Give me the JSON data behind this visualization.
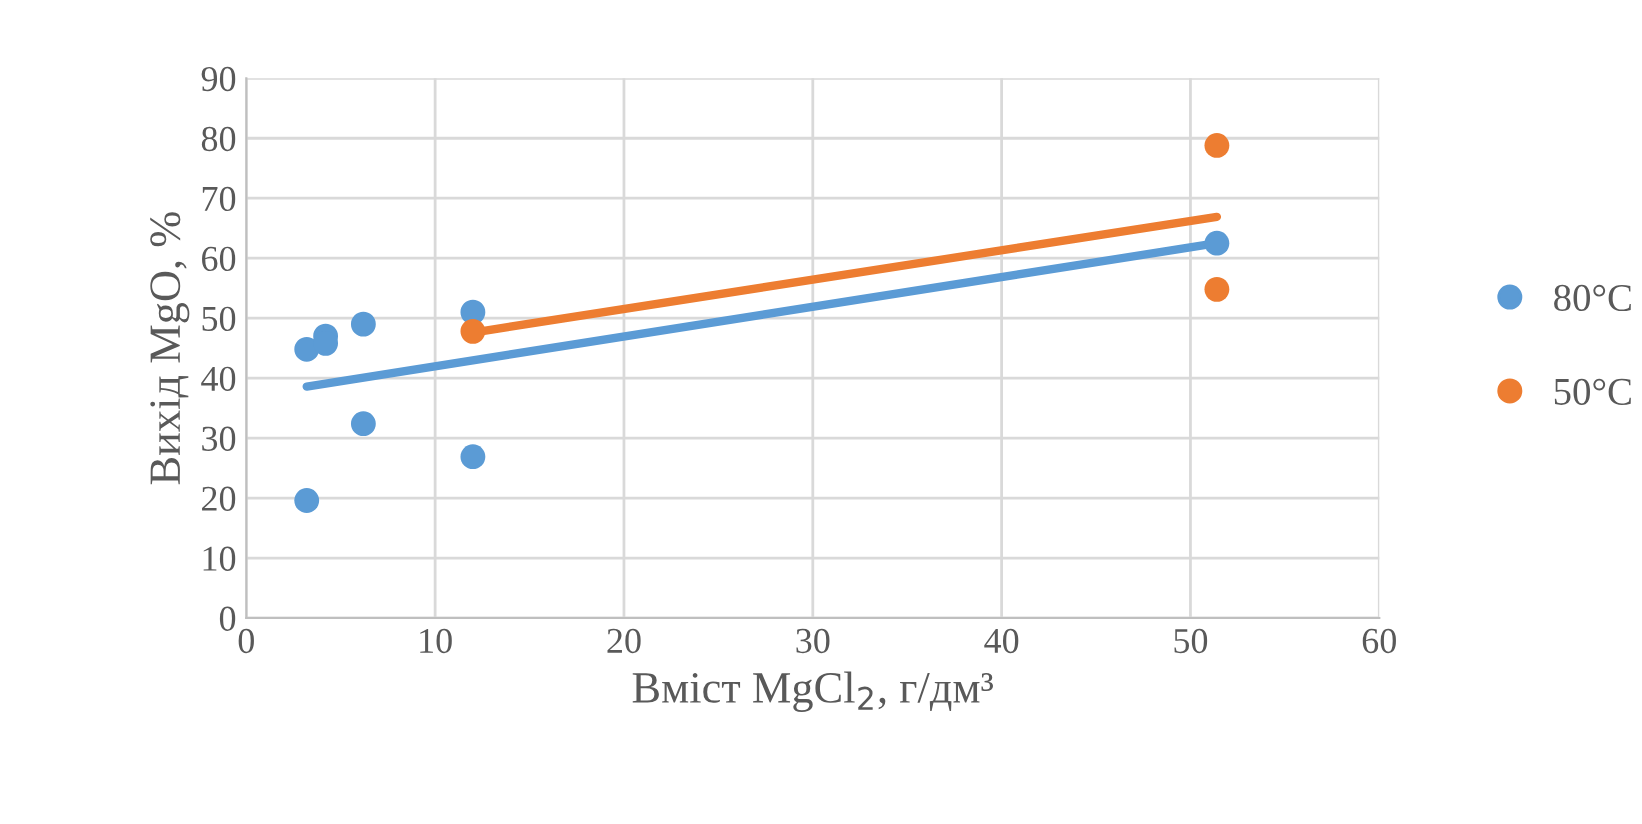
{
  "chart_data": {
    "type": "scatter",
    "xlabel": "Вміст MgCl$_{2}$, г/дм³",
    "ylabel": "Вихід MgO, %",
    "xlim": [
      0,
      60
    ],
    "xticks": [
      0,
      10,
      20,
      30,
      40,
      50,
      60
    ],
    "ylim": [
      0,
      90
    ],
    "yticks": [
      0,
      10,
      20,
      30,
      40,
      50,
      60,
      70,
      80,
      90
    ],
    "grid": true,
    "legend": "right",
    "series": [
      {
        "name": "80°C",
        "marker": "circle",
        "color": "#5b9bd5",
        "x": [
          3.2,
          3.2,
          4.2,
          4.2,
          6.2,
          6.2,
          12,
          12,
          51.4
        ],
        "values": [
          19.6,
          44.8,
          47,
          45.8,
          49,
          32.4,
          51,
          26.9,
          62.5
        ]
      },
      {
        "name": "50°C",
        "marker": "circle",
        "color": "#ed7d31",
        "x": [
          12,
          51.4,
          51.4
        ],
        "values": [
          47.8,
          78.8,
          54.8
        ]
      },
      {
        "type": "line",
        "marker": "none",
        "color": "#5b9bd5",
        "x": [
          3.2,
          51.4
        ],
        "values": [
          38.6,
          62.5
        ]
      },
      {
        "type": "line",
        "marker": "none",
        "color": "#ed7d31",
        "x": [
          12,
          51.4
        ],
        "values": [
          47.6,
          66.9
        ]
      }
    ]
  }
}
